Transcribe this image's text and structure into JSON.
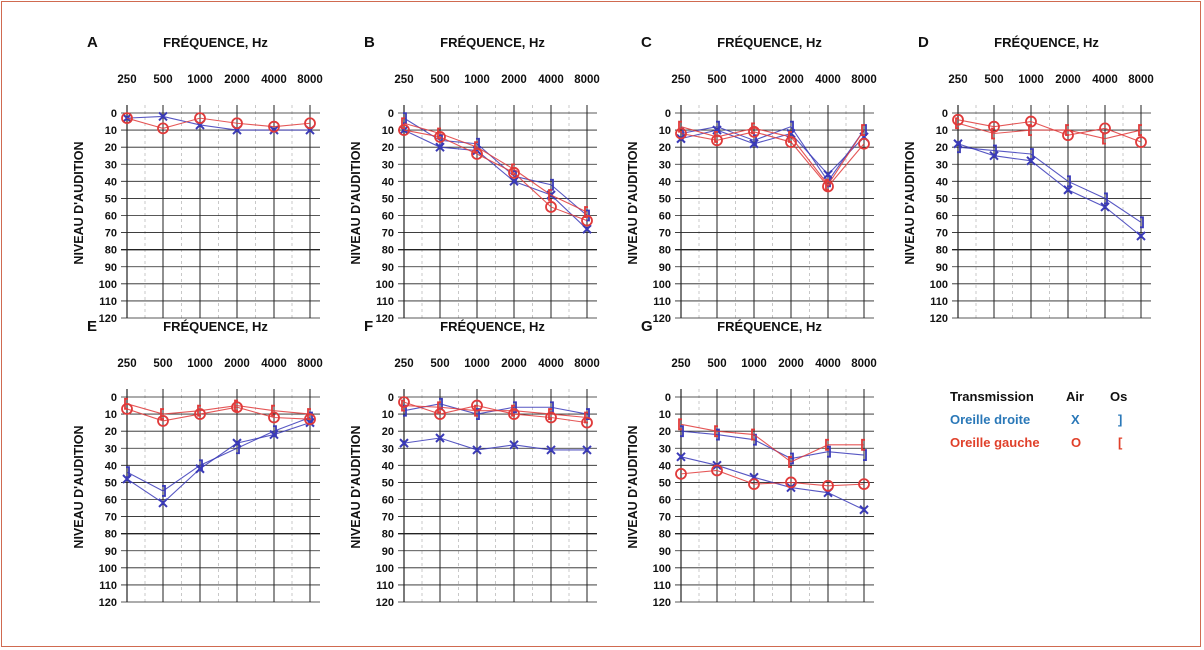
{
  "colors": {
    "right_ear": "#3a3ab8",
    "left_ear": "#e03a3a",
    "right_legend": "#2a78b8",
    "left_legend": "#e0402a",
    "grid": "#222222",
    "minor_grid": "#bbbbbb"
  },
  "legend": {
    "header": "Transmission",
    "col_air": "Air",
    "col_bone": "Os",
    "right_label": "Oreille droite",
    "right_air": "X",
    "right_bone": "]",
    "left_label": "Oreille gauche",
    "left_air": "O",
    "left_bone": "["
  },
  "chart_data": [
    {
      "type": "line",
      "panel": "A",
      "title": "FRÉQUENCE, Hz",
      "ylabel": "NIVEAU D'AUDITION",
      "x": [
        250,
        500,
        1000,
        2000,
        4000,
        8000
      ],
      "ylim": [
        120,
        0
      ],
      "yticks": [
        0,
        10,
        20,
        30,
        40,
        50,
        60,
        70,
        80,
        90,
        100,
        110,
        120
      ],
      "series": [
        {
          "ear": "right",
          "conduction": "air",
          "values": [
            3,
            2,
            7,
            10,
            10,
            10
          ]
        },
        {
          "ear": "left",
          "conduction": "air",
          "values": [
            3,
            9,
            3,
            6,
            8,
            6
          ]
        }
      ]
    },
    {
      "type": "line",
      "panel": "B",
      "title": "FRÉQUENCE, Hz",
      "ylabel": "NIVEAU D'AUDITION",
      "x": [
        250,
        500,
        1000,
        2000,
        4000,
        8000
      ],
      "ylim": [
        120,
        0
      ],
      "yticks": [
        0,
        10,
        20,
        30,
        40,
        50,
        60,
        70,
        80,
        90,
        100,
        110,
        120
      ],
      "series": [
        {
          "ear": "right",
          "conduction": "air",
          "values": [
            10,
            20,
            22,
            40,
            48,
            68
          ]
        },
        {
          "ear": "right",
          "conduction": "bone",
          "values": [
            3,
            16,
            18,
            37,
            42,
            60
          ]
        },
        {
          "ear": "left",
          "conduction": "air",
          "values": [
            10,
            14,
            24,
            35,
            55,
            63
          ]
        },
        {
          "ear": "left",
          "conduction": "bone",
          "values": [
            6,
            12,
            20,
            33,
            48,
            58
          ]
        }
      ]
    },
    {
      "type": "line",
      "panel": "C",
      "title": "FRÉQUENCE, Hz",
      "ylabel": "NIVEAU D'AUDITION",
      "x": [
        250,
        500,
        1000,
        2000,
        4000,
        8000
      ],
      "ylim": [
        120,
        0
      ],
      "yticks": [
        0,
        10,
        20,
        30,
        40,
        50,
        60,
        70,
        80,
        90,
        100,
        110,
        120
      ],
      "series": [
        {
          "ear": "right",
          "conduction": "air",
          "values": [
            15,
            10,
            18,
            12,
            36,
            14
          ]
        },
        {
          "ear": "right",
          "conduction": "bone",
          "values": [
            12,
            8,
            16,
            8,
            40,
            10
          ]
        },
        {
          "ear": "left",
          "conduction": "air",
          "values": [
            12,
            16,
            11,
            17,
            43,
            18
          ]
        },
        {
          "ear": "left",
          "conduction": "bone",
          "values": [
            8,
            14,
            9,
            14,
            42,
            10
          ]
        }
      ]
    },
    {
      "type": "line",
      "panel": "D",
      "title": "FRÉQUENCE, Hz",
      "ylabel": "NIVEAU D'AUDITION",
      "x": [
        250,
        500,
        1000,
        2000,
        4000,
        8000
      ],
      "ylim": [
        120,
        0
      ],
      "yticks": [
        0,
        10,
        20,
        30,
        40,
        50,
        60,
        70,
        80,
        90,
        100,
        110,
        120
      ],
      "series": [
        {
          "ear": "right",
          "conduction": "air",
          "values": [
            18,
            25,
            28,
            45,
            55,
            72
          ]
        },
        {
          "ear": "right",
          "conduction": "bone",
          "values": [
            20,
            22,
            24,
            40,
            50,
            64
          ]
        },
        {
          "ear": "left",
          "conduction": "air",
          "values": [
            4,
            8,
            5,
            13,
            9,
            17
          ]
        },
        {
          "ear": "left",
          "conduction": "bone",
          "values": [
            6,
            12,
            10,
            10,
            15,
            10
          ]
        }
      ]
    },
    {
      "type": "line",
      "panel": "E",
      "title": "FRÉQUENCE, Hz",
      "ylabel": "NIVEAU D'AUDITION",
      "x": [
        250,
        500,
        1000,
        2000,
        4000,
        8000
      ],
      "ylim": [
        120,
        0
      ],
      "yticks": [
        0,
        10,
        20,
        30,
        40,
        50,
        60,
        70,
        80,
        90,
        100,
        110,
        120
      ],
      "series": [
        {
          "ear": "right",
          "conduction": "air",
          "values": [
            48,
            62,
            42,
            27,
            22,
            15
          ]
        },
        {
          "ear": "right",
          "conduction": "bone",
          "values": [
            44,
            55,
            40,
            30,
            20,
            12
          ]
        },
        {
          "ear": "left",
          "conduction": "air",
          "values": [
            7,
            14,
            10,
            6,
            12,
            13
          ]
        },
        {
          "ear": "left",
          "conduction": "bone",
          "values": [
            4,
            10,
            8,
            5,
            8,
            10
          ]
        }
      ]
    },
    {
      "type": "line",
      "panel": "F",
      "title": "FRÉQUENCE, Hz",
      "ylabel": "NIVEAU D'AUDITION",
      "x": [
        250,
        500,
        1000,
        2000,
        4000,
        8000
      ],
      "ylim": [
        120,
        0
      ],
      "yticks": [
        0,
        10,
        20,
        30,
        40,
        50,
        60,
        70,
        80,
        90,
        100,
        110,
        120
      ],
      "series": [
        {
          "ear": "right",
          "conduction": "air",
          "values": [
            27,
            24,
            31,
            28,
            31,
            31
          ]
        },
        {
          "ear": "right",
          "conduction": "bone",
          "values": [
            8,
            4,
            10,
            6,
            6,
            10
          ]
        },
        {
          "ear": "left",
          "conduction": "air",
          "values": [
            3,
            10,
            5,
            10,
            12,
            15
          ]
        },
        {
          "ear": "left",
          "conduction": "bone",
          "values": [
            5,
            6,
            8,
            8,
            10,
            12
          ]
        }
      ]
    },
    {
      "type": "line",
      "panel": "G",
      "title": "FRÉQUENCE, Hz",
      "ylabel": "NIVEAU D'AUDITION",
      "x": [
        250,
        500,
        1000,
        2000,
        4000,
        8000
      ],
      "ylim": [
        120,
        0
      ],
      "yticks": [
        0,
        10,
        20,
        30,
        40,
        50,
        60,
        70,
        80,
        90,
        100,
        110,
        120
      ],
      "series": [
        {
          "ear": "right",
          "conduction": "air",
          "values": [
            35,
            40,
            47,
            53,
            56,
            66
          ]
        },
        {
          "ear": "right",
          "conduction": "bone",
          "values": [
            20,
            22,
            25,
            36,
            32,
            34
          ]
        },
        {
          "ear": "left",
          "conduction": "air",
          "values": [
            45,
            43,
            51,
            50,
            52,
            51
          ]
        },
        {
          "ear": "left",
          "conduction": "bone",
          "values": [
            16,
            20,
            22,
            38,
            28,
            28
          ]
        }
      ]
    }
  ]
}
